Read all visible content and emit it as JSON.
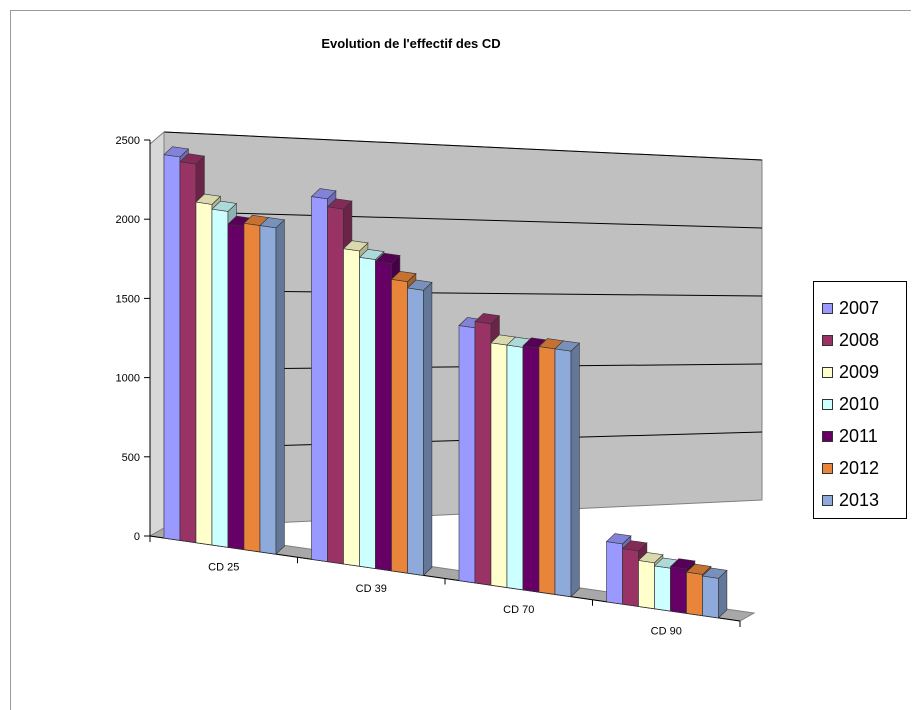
{
  "chart_data": {
    "type": "bar",
    "title": "Evolution de l'effectif des CD",
    "xlabel": "",
    "ylabel": "",
    "categories": [
      "CD 25",
      "CD 39",
      "CD 70",
      "CD 90"
    ],
    "y_ticks": [
      "0",
      "500",
      "1000",
      "1500",
      "2000",
      "2500"
    ],
    "ylim": [
      0,
      2500
    ],
    "grid": true,
    "legend_position": "right",
    "style": "3d-clustered-column",
    "series": [
      {
        "name": "2007",
        "color": "#9999ff",
        "values": [
          2420,
          2290,
          1610,
          380
        ]
      },
      {
        "name": "2008",
        "color": "#993366",
        "values": [
          2390,
          2240,
          1650,
          350
        ]
      },
      {
        "name": "2009",
        "color": "#ffffcc",
        "values": [
          2150,
          1990,
          1530,
          290
        ]
      },
      {
        "name": "2010",
        "color": "#ccffff",
        "values": [
          2120,
          1950,
          1530,
          270
        ]
      },
      {
        "name": "2011",
        "color": "#660066",
        "values": [
          2040,
          1940,
          1540,
          280
        ]
      },
      {
        "name": "2012",
        "color": "#e8853a",
        "values": [
          2060,
          1840,
          1550,
          260
        ]
      },
      {
        "name": "2013",
        "color": "#8eaadb",
        "values": [
          2060,
          1800,
          1550,
          250
        ]
      }
    ]
  }
}
